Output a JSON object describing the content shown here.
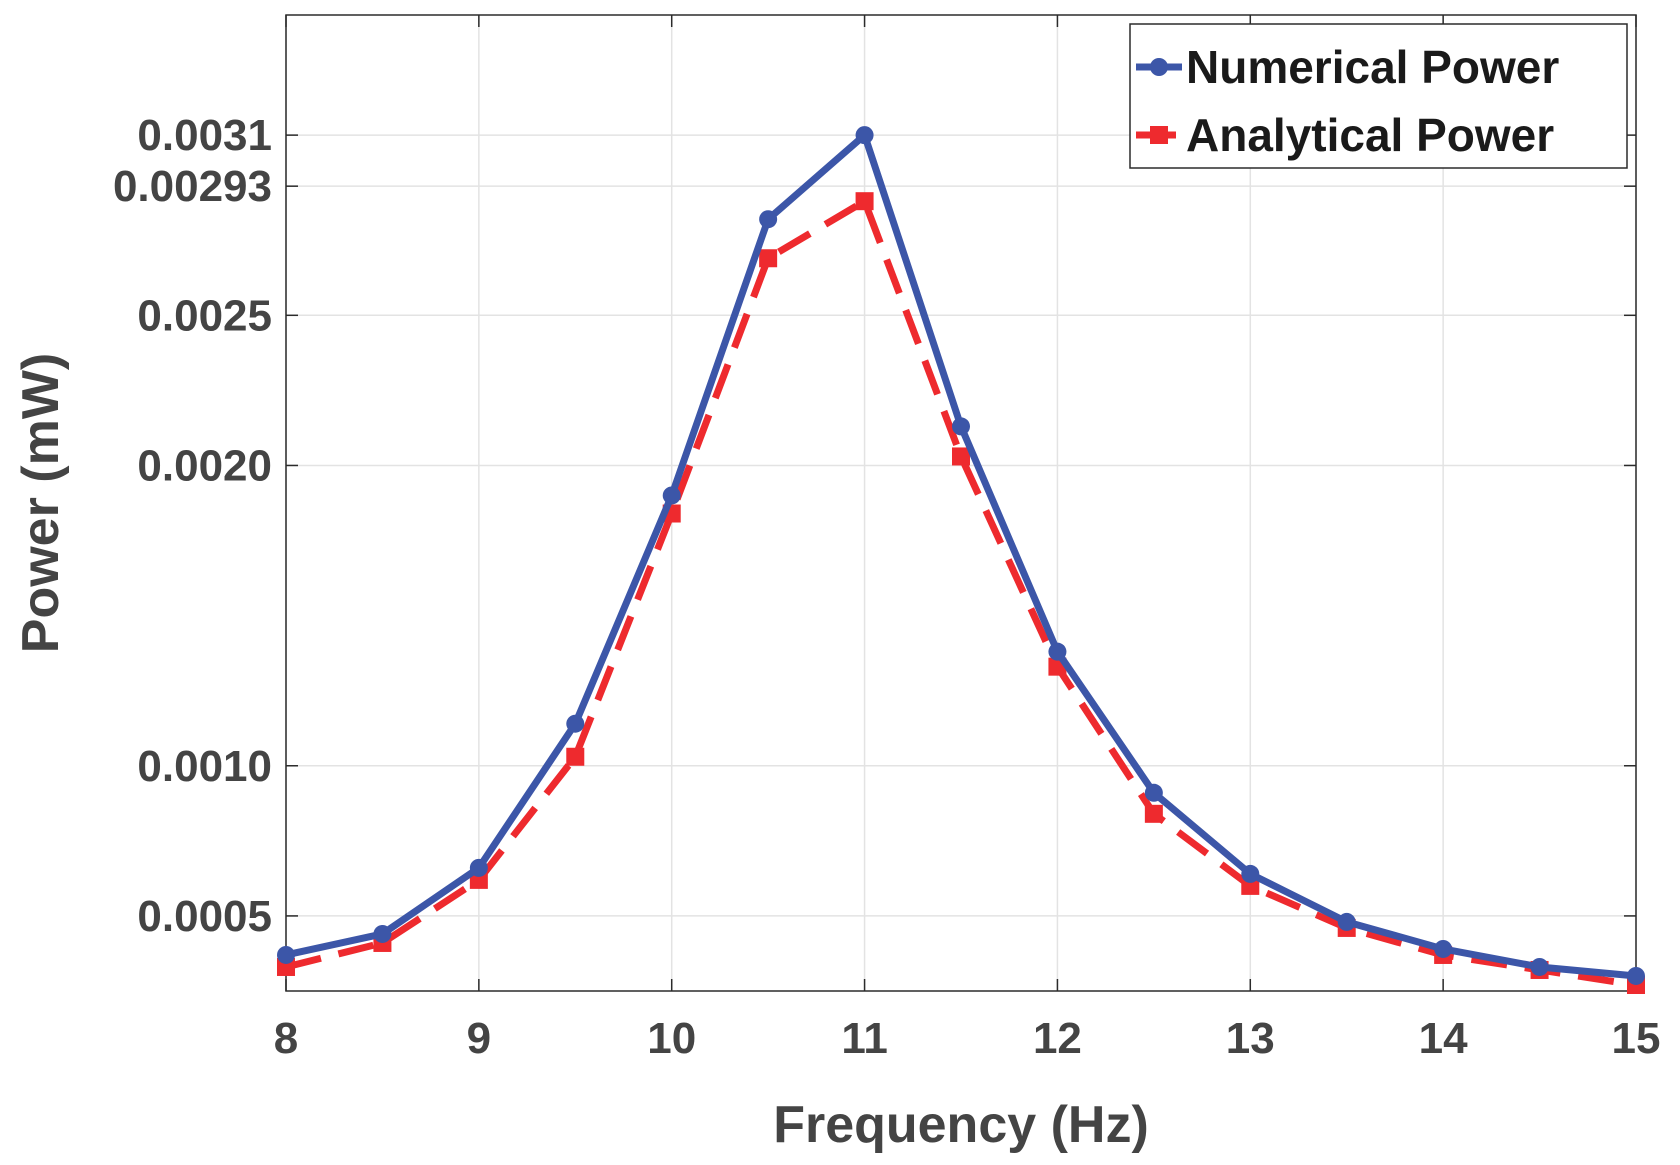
{
  "chart_data": {
    "type": "line",
    "title": "",
    "xlabel": "Frequency (Hz)",
    "ylabel": "Power (mW)",
    "xlim": [
      8,
      15
    ],
    "ylim": [
      0.00025,
      0.0035
    ],
    "grid": true,
    "legend_position": "top-right",
    "x_ticks": [
      8,
      9,
      10,
      11,
      12,
      13,
      14,
      15
    ],
    "x_tick_labels": [
      "8",
      "9",
      "10",
      "11",
      "12",
      "13",
      "14",
      "15"
    ],
    "y_ticks": [
      0.0005,
      0.001,
      0.002,
      0.0025,
      0.00293,
      0.0031
    ],
    "y_tick_labels": [
      "0.0005",
      "0.0010",
      "0.0020",
      "0.0025",
      "0.00293",
      "0.0031"
    ],
    "x": [
      8,
      8.5,
      9,
      9.5,
      10,
      10.5,
      11,
      11.5,
      12,
      12.5,
      13,
      13.5,
      14,
      14.5,
      15
    ],
    "series": [
      {
        "name": "Numerical Power",
        "color": "#3c56a8",
        "style": "solid-circle",
        "values": [
          0.00037,
          0.00044,
          0.00066,
          0.00114,
          0.0019,
          0.00282,
          0.0031,
          0.00213,
          0.00138,
          0.00091,
          0.00064,
          0.00048,
          0.00039,
          0.00033,
          0.0003
        ]
      },
      {
        "name": "Analytical Power",
        "color": "#ee2a2e",
        "style": "dashed-square",
        "values": [
          0.00033,
          0.00041,
          0.00062,
          0.00103,
          0.00184,
          0.00269,
          0.00288,
          0.00203,
          0.00133,
          0.00084,
          0.0006,
          0.00046,
          0.00037,
          0.00032,
          0.00027
        ]
      }
    ]
  }
}
